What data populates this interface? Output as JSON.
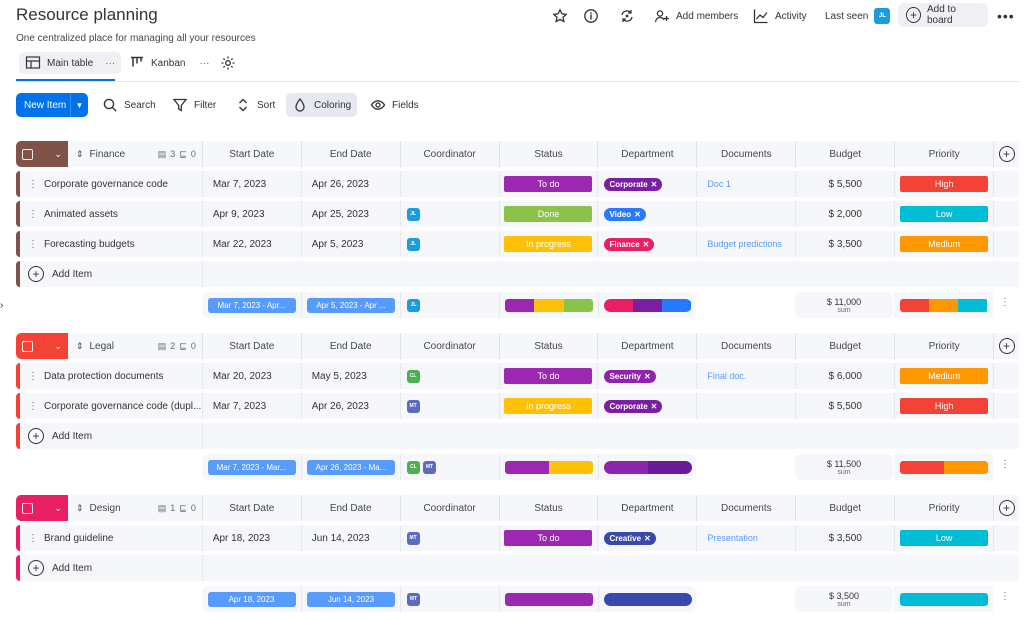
{
  "header": {
    "title": "Resource planning",
    "subtitle": "One centralized place for managing all your resources",
    "add_members": "Add members",
    "activity": "Activity",
    "last_seen": "Last seen",
    "last_seen_avatar": "JL",
    "add_to_board": "Add to board"
  },
  "views": {
    "main_table": "Main table",
    "kanban": "Kanban"
  },
  "toolbar": {
    "new_item": "New Item",
    "search": "Search",
    "filter": "Filter",
    "sort": "Sort",
    "coloring": "Coloring",
    "fields": "Fields"
  },
  "columns": {
    "start_date": "Start Date",
    "end_date": "End Date",
    "coordinator": "Coordinator",
    "status": "Status",
    "department": "Department",
    "documents": "Documents",
    "budget": "Budget",
    "priority": "Priority"
  },
  "add_item_label": "Add Item",
  "sum_label": "sum",
  "colors": {
    "accent": "#0073ea",
    "finance": "#7f5347",
    "legal": "#e2445c",
    "design": "#ff3d57"
  },
  "groups": {
    "finance": {
      "name": "Finance",
      "files": "3",
      "subitems": "0",
      "rows": [
        {
          "name": "Corporate governance code",
          "start": "Mar 7, 2023",
          "end": "Apr 26, 2023",
          "coordinator": "",
          "status": "To do",
          "department": "Corporate",
          "document": "Doc 1",
          "budget": "$ 5,500",
          "priority": "High"
        },
        {
          "name": "Animated assets",
          "start": "Apr 9, 2023",
          "end": "Apr 25, 2023",
          "coordinator": "JL",
          "status": "Done",
          "department": "Video",
          "document": "",
          "budget": "$ 2,000",
          "priority": "Low"
        },
        {
          "name": "Forecasting budgets",
          "start": "Mar 22, 2023",
          "end": "Apr 5, 2023",
          "coordinator": "JL",
          "status": "In progress",
          "department": "Finance",
          "document": "Budget predictions",
          "budget": "$ 3,500",
          "priority": "Medium"
        }
      ],
      "summary": {
        "start": "Mar 7, 2023 - Apr...",
        "end": "Apr 5, 2023 - Apr ...",
        "coordinator": "JL",
        "budget": "$ 11,000"
      }
    },
    "legal": {
      "name": "Legal",
      "files": "2",
      "subitems": "0",
      "rows": [
        {
          "name": "Data protection documents",
          "start": "Mar 20, 2023",
          "end": "May 5, 2023",
          "coordinator": "CL",
          "status": "To do",
          "department": "Security",
          "document": "Final doc.",
          "budget": "$ 6,000",
          "priority": "Medium"
        },
        {
          "name": "Corporate governance code (dupl...",
          "start": "Mar 7, 2023",
          "end": "Apr 26, 2023",
          "coordinator": "MT",
          "status": "In progress",
          "department": "Corporate",
          "document": "",
          "budget": "$ 5,500",
          "priority": "High"
        }
      ],
      "summary": {
        "start": "Mar 7, 2023 - Mar...",
        "end": "Apr 26, 2023 - Ma...",
        "coordinator_a": "CL",
        "coordinator_b": "MT",
        "budget": "$ 11,500"
      }
    },
    "design": {
      "name": "Design",
      "files": "1",
      "subitems": "0",
      "rows": [
        {
          "name": "Brand guideline",
          "start": "Apr 18, 2023",
          "end": "Jun 14, 2023",
          "coordinator": "MT",
          "status": "To do",
          "department": "Creative",
          "document": "Presentation",
          "budget": "$ 3,500",
          "priority": "Low"
        }
      ],
      "summary": {
        "start": "Apr 18, 2023",
        "end": "Jun 14, 2023",
        "coordinator": "MT",
        "budget": "$ 3,500"
      }
    }
  }
}
